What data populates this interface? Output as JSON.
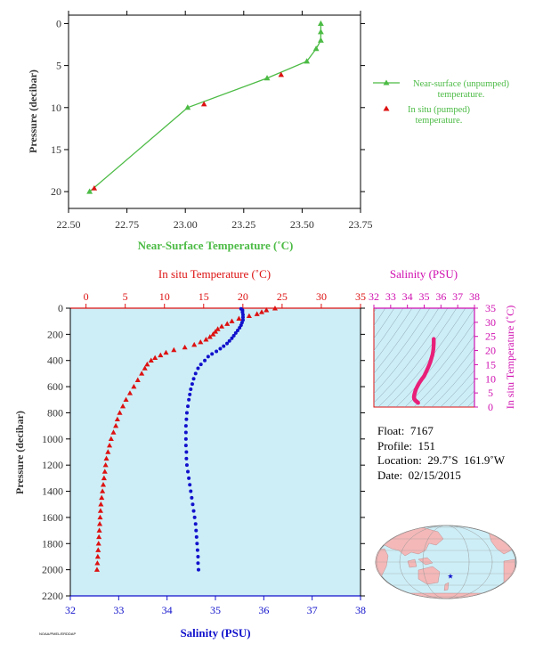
{
  "colors": {
    "green": "#4cbb45",
    "red": "#dd1111",
    "blue": "#1111cc",
    "magenta": "#d010b0",
    "pink": "#e8207a",
    "panel_bg": "#cdeef7",
    "axis_text": "#333333",
    "land": "#f4b8b8",
    "ocean": "#cdeef7"
  },
  "chart_data": [
    {
      "type": "line",
      "xlabel": "Near-Surface Temperature (˚C)",
      "ylabel": "Pressure (decibar)",
      "xlim": [
        22.5,
        23.75
      ],
      "ylim": [
        22,
        -1
      ],
      "xticks": [
        "22.50",
        "22.75",
        "23.00",
        "23.25",
        "23.50",
        "23.75"
      ],
      "yticks": [
        "0",
        "5",
        "10",
        "15",
        "20"
      ],
      "legend": [
        "Near-surface (unpumped) temperature.",
        "In situ (pumped) temperature."
      ],
      "legend_position": "right",
      "series": [
        {
          "name": "Near-surface (unpumped) temperature.",
          "marker": "triangle",
          "points": [
            [
              22.59,
              20
            ],
            [
              23.01,
              10
            ],
            [
              23.35,
              6.5
            ],
            [
              23.52,
              4.5
            ],
            [
              23.56,
              3
            ],
            [
              23.58,
              2
            ],
            [
              23.58,
              1
            ],
            [
              23.58,
              0
            ]
          ]
        },
        {
          "name": "In situ (pumped) temperature.",
          "marker": "triangle",
          "points": [
            [
              22.61,
              19.6
            ],
            [
              23.08,
              9.6
            ],
            [
              23.41,
              6.1
            ]
          ]
        }
      ]
    },
    {
      "type": "scatter",
      "x_top_label": "In situ Temperature (˚C)",
      "x_bottom_label": "Salinity (PSU)",
      "ylabel": "Pressure (decibar)",
      "temp_lim": [
        -2,
        35
      ],
      "salinity_lim": [
        32,
        38
      ],
      "ylim": [
        2200,
        0
      ],
      "temp_ticks": [
        "0",
        "5",
        "10",
        "15",
        "20",
        "25",
        "30",
        "35"
      ],
      "salinity_ticks": [
        "32",
        "33",
        "34",
        "35",
        "36",
        "37",
        "38"
      ],
      "yticks": [
        "0",
        "200",
        "400",
        "600",
        "800",
        "1000",
        "1200",
        "1400",
        "1600",
        "1800",
        "2000",
        "2200"
      ],
      "temperature": [
        [
          24.1,
          2
        ],
        [
          23.0,
          15
        ],
        [
          22.4,
          30
        ],
        [
          21.8,
          45
        ],
        [
          20.8,
          60
        ],
        [
          19.5,
          80
        ],
        [
          18.6,
          100
        ],
        [
          18.0,
          120
        ],
        [
          17.3,
          140
        ],
        [
          16.8,
          160
        ],
        [
          16.5,
          180
        ],
        [
          16.2,
          200
        ],
        [
          15.8,
          220
        ],
        [
          15.3,
          240
        ],
        [
          14.6,
          260
        ],
        [
          13.8,
          280
        ],
        [
          12.6,
          300
        ],
        [
          11.2,
          320
        ],
        [
          10.2,
          340
        ],
        [
          9.5,
          360
        ],
        [
          8.8,
          380
        ],
        [
          8.3,
          400
        ],
        [
          7.8,
          430
        ],
        [
          7.5,
          460
        ],
        [
          7.1,
          500
        ],
        [
          6.6,
          550
        ],
        [
          6.1,
          600
        ],
        [
          5.6,
          650
        ],
        [
          5.1,
          700
        ],
        [
          4.7,
          750
        ],
        [
          4.3,
          800
        ],
        [
          4.0,
          850
        ],
        [
          3.8,
          900
        ],
        [
          3.5,
          950
        ],
        [
          3.2,
          1000
        ],
        [
          3.0,
          1050
        ],
        [
          2.8,
          1100
        ],
        [
          2.6,
          1150
        ],
        [
          2.5,
          1200
        ],
        [
          2.4,
          1250
        ],
        [
          2.3,
          1300
        ],
        [
          2.2,
          1350
        ],
        [
          2.1,
          1400
        ],
        [
          2.0,
          1450
        ],
        [
          1.9,
          1500
        ],
        [
          1.85,
          1550
        ],
        [
          1.8,
          1600
        ],
        [
          1.75,
          1650
        ],
        [
          1.7,
          1700
        ],
        [
          1.65,
          1750
        ],
        [
          1.6,
          1800
        ],
        [
          1.55,
          1850
        ],
        [
          1.5,
          1900
        ],
        [
          1.45,
          1950
        ],
        [
          1.4,
          2000
        ]
      ],
      "salinity": [
        [
          35.53,
          5
        ],
        [
          35.56,
          15
        ],
        [
          35.56,
          30
        ],
        [
          35.57,
          50
        ],
        [
          35.57,
          70
        ],
        [
          35.57,
          90
        ],
        [
          35.55,
          110
        ],
        [
          35.53,
          130
        ],
        [
          35.5,
          150
        ],
        [
          35.46,
          170
        ],
        [
          35.42,
          190
        ],
        [
          35.38,
          210
        ],
        [
          35.34,
          230
        ],
        [
          35.29,
          250
        ],
        [
          35.24,
          270
        ],
        [
          35.17,
          290
        ],
        [
          35.1,
          310
        ],
        [
          35.02,
          330
        ],
        [
          34.93,
          350
        ],
        [
          34.85,
          370
        ],
        [
          34.78,
          400
        ],
        [
          34.7,
          430
        ],
        [
          34.64,
          460
        ],
        [
          34.59,
          500
        ],
        [
          34.55,
          540
        ],
        [
          34.52,
          580
        ],
        [
          34.49,
          620
        ],
        [
          34.47,
          660
        ],
        [
          34.45,
          700
        ],
        [
          34.43,
          750
        ],
        [
          34.41,
          800
        ],
        [
          34.4,
          850
        ],
        [
          34.39,
          900
        ],
        [
          34.39,
          950
        ],
        [
          34.39,
          1000
        ],
        [
          34.39,
          1050
        ],
        [
          34.4,
          1100
        ],
        [
          34.4,
          1150
        ],
        [
          34.41,
          1200
        ],
        [
          34.43,
          1250
        ],
        [
          34.45,
          1300
        ],
        [
          34.47,
          1350
        ],
        [
          34.49,
          1400
        ],
        [
          34.51,
          1450
        ],
        [
          34.53,
          1500
        ],
        [
          34.55,
          1550
        ],
        [
          34.57,
          1600
        ],
        [
          34.59,
          1650
        ],
        [
          34.6,
          1700
        ],
        [
          34.61,
          1750
        ],
        [
          34.62,
          1800
        ],
        [
          34.63,
          1850
        ],
        [
          34.64,
          1900
        ],
        [
          34.64,
          1950
        ],
        [
          34.65,
          2000
        ]
      ]
    },
    {
      "type": "scatter",
      "title": "Salinity (PSU)",
      "ylabel": "In situ Temperature (˚C)",
      "xlim": [
        32,
        38
      ],
      "ylim": [
        0,
        35
      ],
      "xticks": [
        "32",
        "33",
        "34",
        "35",
        "36",
        "37",
        "38"
      ],
      "yticks": [
        "0",
        "5",
        "10",
        "15",
        "20",
        "25",
        "30",
        "35"
      ],
      "points": [
        [
          35.57,
          24.1
        ],
        [
          35.57,
          22.4
        ],
        [
          35.55,
          20.5
        ],
        [
          35.5,
          18.6
        ],
        [
          35.42,
          17
        ],
        [
          35.36,
          15.8
        ],
        [
          35.25,
          14.2
        ],
        [
          35.12,
          12.5
        ],
        [
          35.0,
          11
        ],
        [
          34.85,
          9.8
        ],
        [
          34.7,
          8.5
        ],
        [
          34.6,
          7.4
        ],
        [
          34.5,
          6.2
        ],
        [
          34.45,
          5.2
        ],
        [
          34.41,
          4.3
        ],
        [
          34.39,
          3.6
        ],
        [
          34.4,
          3.0
        ],
        [
          34.45,
          2.5
        ],
        [
          34.52,
          2.1
        ],
        [
          34.6,
          1.7
        ],
        [
          34.65,
          1.4
        ]
      ]
    }
  ],
  "float_info": {
    "float": "Float:  7167",
    "profile": "Profile:  151",
    "location": "Location:  29.7˚S  161.9˚W",
    "date": "Date:  02/15/2015"
  },
  "footer": {
    "credit": "NOAA/PMEL/ERDDAP"
  },
  "map": {
    "projection": "Robinson world map",
    "marker_icon": "blue-star-icon"
  }
}
